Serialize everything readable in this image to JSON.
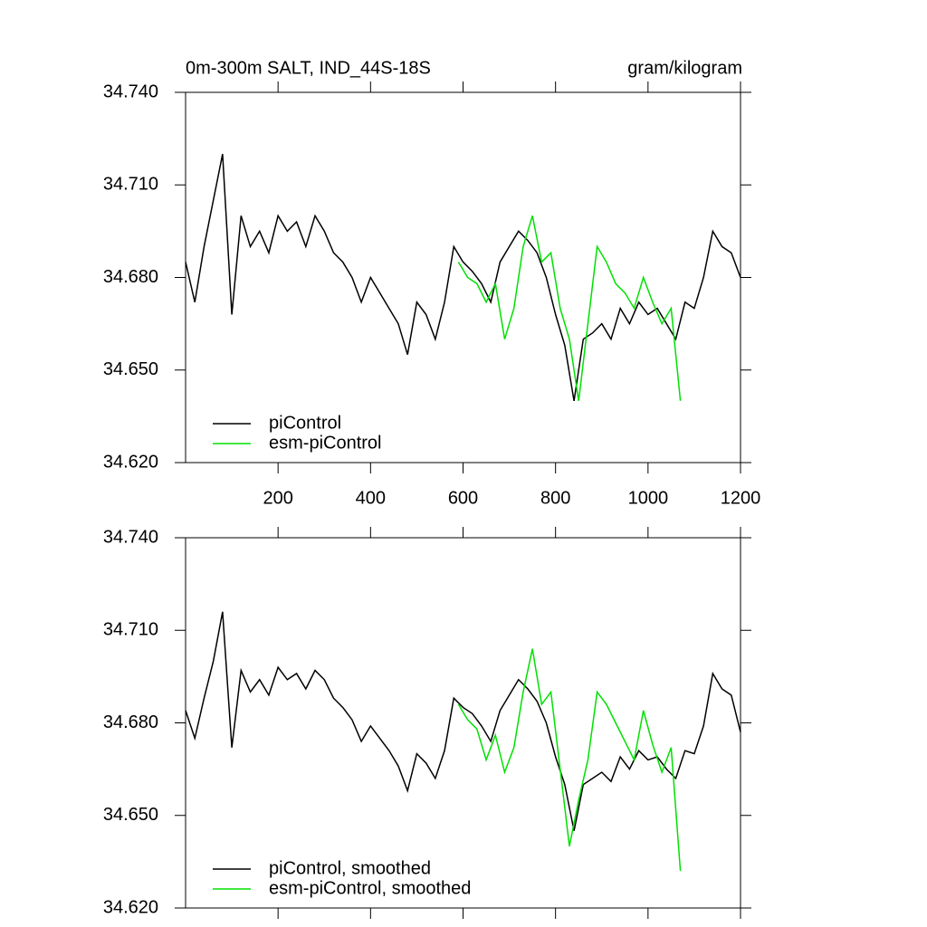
{
  "chart_data": [
    {
      "type": "line",
      "title": "0m-300m SALT, IND_44S-18S",
      "units": "gram/kilogram",
      "xlim": [
        0,
        1200
      ],
      "xticks": [
        200,
        400,
        600,
        800,
        1000,
        1200
      ],
      "ylim": [
        34.62,
        34.74
      ],
      "yticks": [
        {
          "value": 34.62,
          "label": "34.620"
        },
        {
          "value": 34.65,
          "label": "34.650"
        },
        {
          "value": 34.68,
          "label": "34.680"
        },
        {
          "value": 34.71,
          "label": "34.710"
        },
        {
          "value": 34.74,
          "label": "34.740"
        }
      ],
      "legend": "bottom-left",
      "series": [
        {
          "name": "piControl",
          "color": "#000000",
          "x": [
            0,
            20,
            40,
            60,
            80,
            100,
            120,
            140,
            160,
            180,
            200,
            220,
            240,
            260,
            280,
            300,
            320,
            340,
            360,
            380,
            400,
            420,
            440,
            460,
            480,
            500,
            520,
            540,
            560,
            580,
            600,
            620,
            640,
            660,
            680,
            700,
            720,
            740,
            760,
            780,
            800,
            820,
            840,
            860,
            880,
            900,
            920,
            940,
            960,
            980,
            1000,
            1020,
            1040,
            1060,
            1080,
            1100,
            1120,
            1140,
            1160,
            1180,
            1200
          ],
          "values": [
            34.685,
            34.672,
            34.69,
            34.705,
            34.72,
            34.668,
            34.7,
            34.69,
            34.695,
            34.688,
            34.7,
            34.695,
            34.698,
            34.69,
            34.7,
            34.695,
            34.688,
            34.685,
            34.68,
            34.672,
            34.68,
            34.675,
            34.67,
            34.665,
            34.655,
            34.672,
            34.668,
            34.66,
            34.672,
            34.69,
            34.685,
            34.682,
            34.678,
            34.672,
            34.685,
            34.69,
            34.695,
            34.692,
            34.688,
            34.68,
            34.668,
            34.658,
            34.64,
            34.66,
            34.662,
            34.665,
            34.66,
            34.67,
            34.665,
            34.672,
            34.668,
            34.67,
            34.665,
            34.66,
            34.672,
            34.67,
            34.68,
            34.695,
            34.69,
            34.688,
            34.68
          ]
        },
        {
          "name": "esm-piControl",
          "color": "#00e000",
          "x": [
            590,
            610,
            630,
            650,
            670,
            690,
            710,
            730,
            750,
            770,
            790,
            810,
            830,
            850,
            870,
            890,
            910,
            930,
            950,
            970,
            990,
            1010,
            1030,
            1050,
            1070
          ],
          "values": [
            34.685,
            34.68,
            34.678,
            34.672,
            34.678,
            34.66,
            34.67,
            34.69,
            34.7,
            34.685,
            34.688,
            34.67,
            34.66,
            34.64,
            34.665,
            34.69,
            34.685,
            34.678,
            34.675,
            34.67,
            34.68,
            34.672,
            34.665,
            34.67,
            34.64
          ]
        }
      ]
    },
    {
      "type": "line",
      "xlim": [
        0,
        1200
      ],
      "xticks": [
        200,
        400,
        600,
        800,
        1000,
        1200
      ],
      "ylim": [
        34.62,
        34.74
      ],
      "yticks": [
        {
          "value": 34.62,
          "label": "34.620"
        },
        {
          "value": 34.65,
          "label": "34.650"
        },
        {
          "value": 34.68,
          "label": "34.680"
        },
        {
          "value": 34.71,
          "label": "34.710"
        },
        {
          "value": 34.74,
          "label": "34.740"
        }
      ],
      "legend": "bottom-left",
      "series": [
        {
          "name": "piControl, smoothed",
          "color": "#000000",
          "x": [
            0,
            20,
            40,
            60,
            80,
            100,
            120,
            140,
            160,
            180,
            200,
            220,
            240,
            260,
            280,
            300,
            320,
            340,
            360,
            380,
            400,
            420,
            440,
            460,
            480,
            500,
            520,
            540,
            560,
            580,
            600,
            620,
            640,
            660,
            680,
            700,
            720,
            740,
            760,
            780,
            800,
            820,
            840,
            860,
            880,
            900,
            920,
            940,
            960,
            980,
            1000,
            1020,
            1040,
            1060,
            1080,
            1100,
            1120,
            1140,
            1160,
            1180,
            1200
          ],
          "values": [
            34.684,
            34.675,
            34.688,
            34.7,
            34.716,
            34.672,
            34.697,
            34.69,
            34.694,
            34.689,
            34.698,
            34.694,
            34.696,
            34.691,
            34.697,
            34.694,
            34.688,
            34.685,
            34.681,
            34.674,
            34.679,
            34.675,
            34.671,
            34.666,
            34.658,
            34.67,
            34.667,
            34.662,
            34.671,
            34.688,
            34.685,
            34.683,
            34.679,
            34.674,
            34.684,
            34.689,
            34.694,
            34.691,
            34.687,
            34.68,
            34.669,
            34.66,
            34.645,
            34.66,
            34.662,
            34.664,
            34.661,
            34.669,
            34.665,
            34.671,
            34.668,
            34.669,
            34.665,
            34.662,
            34.671,
            34.67,
            34.679,
            34.696,
            34.691,
            34.689,
            34.677
          ]
        },
        {
          "name": "esm-piControl, smoothed",
          "color": "#00e000",
          "x": [
            590,
            610,
            630,
            650,
            670,
            690,
            710,
            730,
            750,
            770,
            790,
            810,
            830,
            850,
            870,
            890,
            910,
            930,
            950,
            970,
            990,
            1010,
            1030,
            1050,
            1070
          ],
          "values": [
            34.686,
            34.681,
            34.678,
            34.668,
            34.676,
            34.664,
            34.672,
            34.69,
            34.704,
            34.686,
            34.69,
            34.665,
            34.64,
            34.655,
            34.668,
            34.69,
            34.686,
            34.68,
            34.674,
            34.668,
            34.684,
            34.673,
            34.664,
            34.672,
            34.632
          ]
        }
      ]
    }
  ]
}
